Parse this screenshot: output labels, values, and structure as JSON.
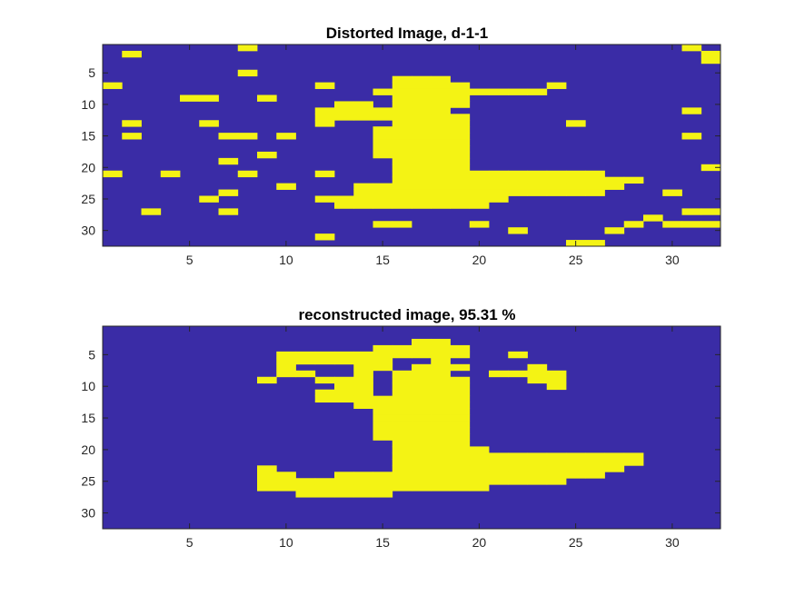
{
  "colors": {
    "background": "#3a2ca6",
    "foreground": "#f4f314",
    "axes": "#262626"
  },
  "chart_data": [
    {
      "type": "heatmap",
      "title": "Distorted Image, d-1-1",
      "xlim": [
        0.5,
        32.5
      ],
      "ylim": [
        0.5,
        32.5
      ],
      "y_reversed": true,
      "xticks": [
        5,
        10,
        15,
        20,
        25,
        30
      ],
      "yticks": [
        5,
        10,
        15,
        20,
        25,
        30
      ],
      "values": {
        "0": 2,
        "1": 1
      },
      "rows": [
        "00000001000000000000000000000010",
        "01000000000000000000000000000001",
        "00000000000000000000000000000001",
        "00000000000000000000000000000000",
        "00000001000000000000000000000000",
        "00000000000000011100000000000000",
        "10000000000100011110000100000000",
        "00000000000000111111111000000000",
        "00001100100000011110000000000000",
        "00000000000011011110000000000000",
        "00000000000111111100000000000010",
        "00000000000111111110000000000000",
        "01000100000100011110000010000000",
        "00000000000000111110000000000000",
        "01000011010000111110000000000010",
        "00000000000000111110000000000000",
        "00000000000000111110000000000000",
        "00000000100000111110000000000000",
        "00000010000000011110000000000000",
        "00000000000000011110000000000001",
        "10010001000100011111111111000000",
        "00000000000000011111111111110000",
        "00000000010001111111111111100000",
        "00000010000001111111111111000100",
        "00000100000111111111100000000000",
        "00000000000011111111000000000000",
        "00100010000000000000000000000011",
        "00000000000000000000000000001000",
        "00000000000000110001000000010111",
        "00000000000000000000010000100000",
        "00000000000100000000000000000000",
        "00000000000000000000000011000000"
      ]
    },
    {
      "type": "heatmap",
      "title": "reconstructed image, 95.31 %",
      "xlim": [
        0.5,
        32.5
      ],
      "ylim": [
        0.5,
        32.5
      ],
      "y_reversed": true,
      "xticks": [
        5,
        10,
        15,
        20,
        25,
        30
      ],
      "yticks": [
        5,
        10,
        15,
        20,
        25,
        30
      ],
      "rows": [
        "00000000000000000000000000000000",
        "00000000000000000000000000000000",
        "00000000000000001100000000000000",
        "00000000000000111110000000000000",
        "00000000011111111110010000000000",
        "00000000011111100100000000000000",
        "00000000010001101110001000000000",
        "00000000011001011100111100000000",
        "00000000100111011110001100000000",
        "00000000000011011110000100000000",
        "00000000000111011110000000000000",
        "00000000000111111110000000000000",
        "00000000000001111110000000000000",
        "00000000000000111110000000000000",
        "00000000000000111110000000000000",
        "00000000000000111110000000000000",
        "00000000000000111110000000000000",
        "00000000000000111110000000000000",
        "00000000000000011110000000000000",
        "00000000000000011111000000000000",
        "00000000000000011111111111110000",
        "00000000000000011111111111110000",
        "00000000100000011111111111100000",
        "00000000110011111111111111000000",
        "00000000111111111111111100000000",
        "00000000111111111111000000000000",
        "00000000001111100000000000000000",
        "00000000000000000000000000000000",
        "00000000000000000000000000000000",
        "00000000000000000000000000000000",
        "00000000000000000000000000000000",
        "00000000000000000000000000000000"
      ]
    }
  ]
}
